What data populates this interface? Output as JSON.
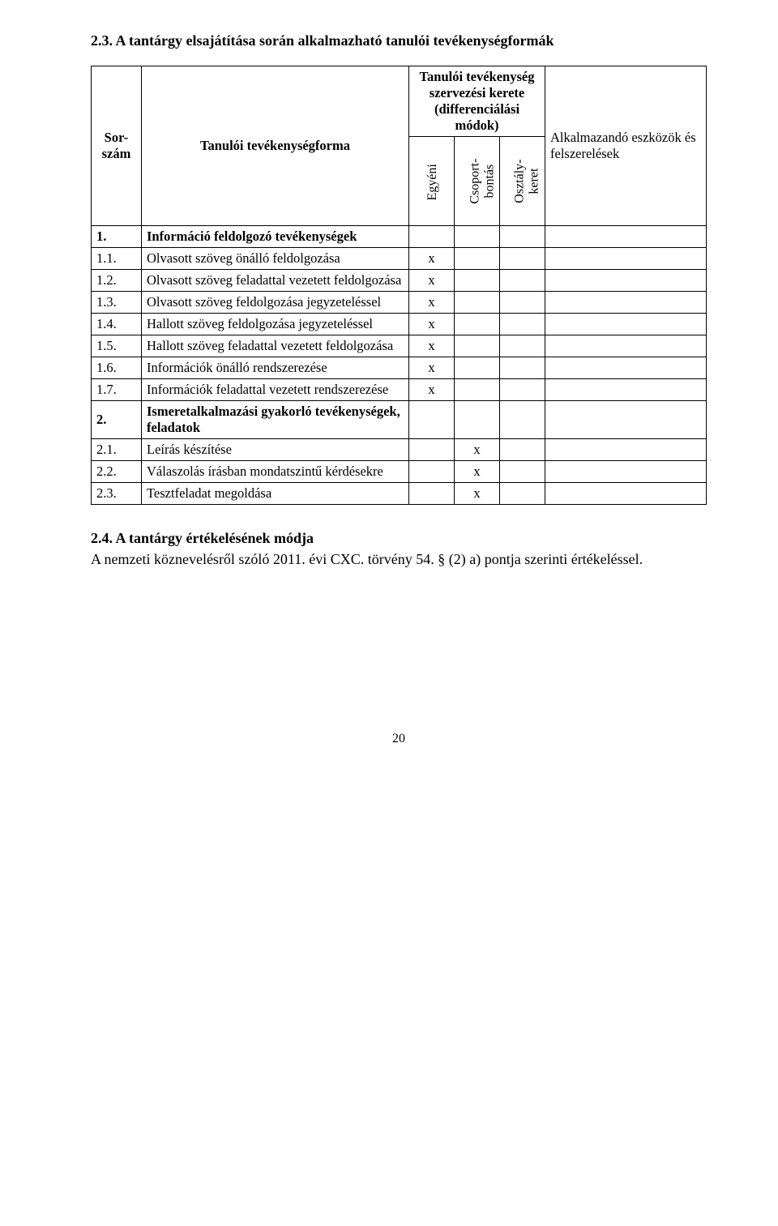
{
  "heading": "2.3. A tantárgy elsajátítása során alkalmazható tanulói tevékenységformák",
  "headers": {
    "sorszam": "Sor-szám",
    "forma": "Tanulói tevékenységforma",
    "kerete_top": "Tanulói tevékenység szervezési kerete (differenciálási módok)",
    "egyeni": "Egyéni",
    "csoport": "Csoport-\nbontás",
    "osztaly": "Osztály-\nkeret",
    "alkalmazando": "Alkalmazandó eszközök és felszerelések"
  },
  "rows": [
    {
      "num": "1.",
      "desc": "Információ feldolgozó tevékenységek",
      "c1": "",
      "c2": "",
      "c3": "",
      "bold": true
    },
    {
      "num": "1.1.",
      "desc": "Olvasott szöveg önálló feldolgozása",
      "c1": "x",
      "c2": "",
      "c3": ""
    },
    {
      "num": "1.2.",
      "desc": "Olvasott szöveg feladattal vezetett feldolgozása",
      "c1": "x",
      "c2": "",
      "c3": ""
    },
    {
      "num": "1.3.",
      "desc": "Olvasott szöveg feldolgozása jegyzeteléssel",
      "c1": "x",
      "c2": "",
      "c3": ""
    },
    {
      "num": "1.4.",
      "desc": "Hallott szöveg feldolgozása jegyzeteléssel",
      "c1": "x",
      "c2": "",
      "c3": ""
    },
    {
      "num": "1.5.",
      "desc": "Hallott szöveg feladattal vezetett feldolgozása",
      "c1": "x",
      "c2": "",
      "c3": ""
    },
    {
      "num": "1.6.",
      "desc": "Információk önálló rendszerezése",
      "c1": "x",
      "c2": "",
      "c3": ""
    },
    {
      "num": "1.7.",
      "desc": "Információk feladattal vezetett rendszerezése",
      "c1": "x",
      "c2": "",
      "c3": ""
    },
    {
      "num": "2.",
      "desc": "Ismeretalkalmazási gyakorló tevékenységek, feladatok",
      "c1": "",
      "c2": "",
      "c3": "",
      "bold": true
    },
    {
      "num": "2.1.",
      "desc": "Leírás készítése",
      "c1": "",
      "c2": "x",
      "c3": ""
    },
    {
      "num": "2.2.",
      "desc": "Válaszolás írásban mondatszintű kérdésekre",
      "c1": "",
      "c2": "x",
      "c3": ""
    },
    {
      "num": "2.3.",
      "desc": "Tesztfeladat megoldása",
      "c1": "",
      "c2": "x",
      "c3": ""
    }
  ],
  "assessment": {
    "title": "2.4. A tantárgy értékelésének módja",
    "body": "A nemzeti köznevelésről szóló 2011. évi CXC. törvény 54. § (2) a) pontja szerinti értékeléssel."
  },
  "pageNumber": "20"
}
